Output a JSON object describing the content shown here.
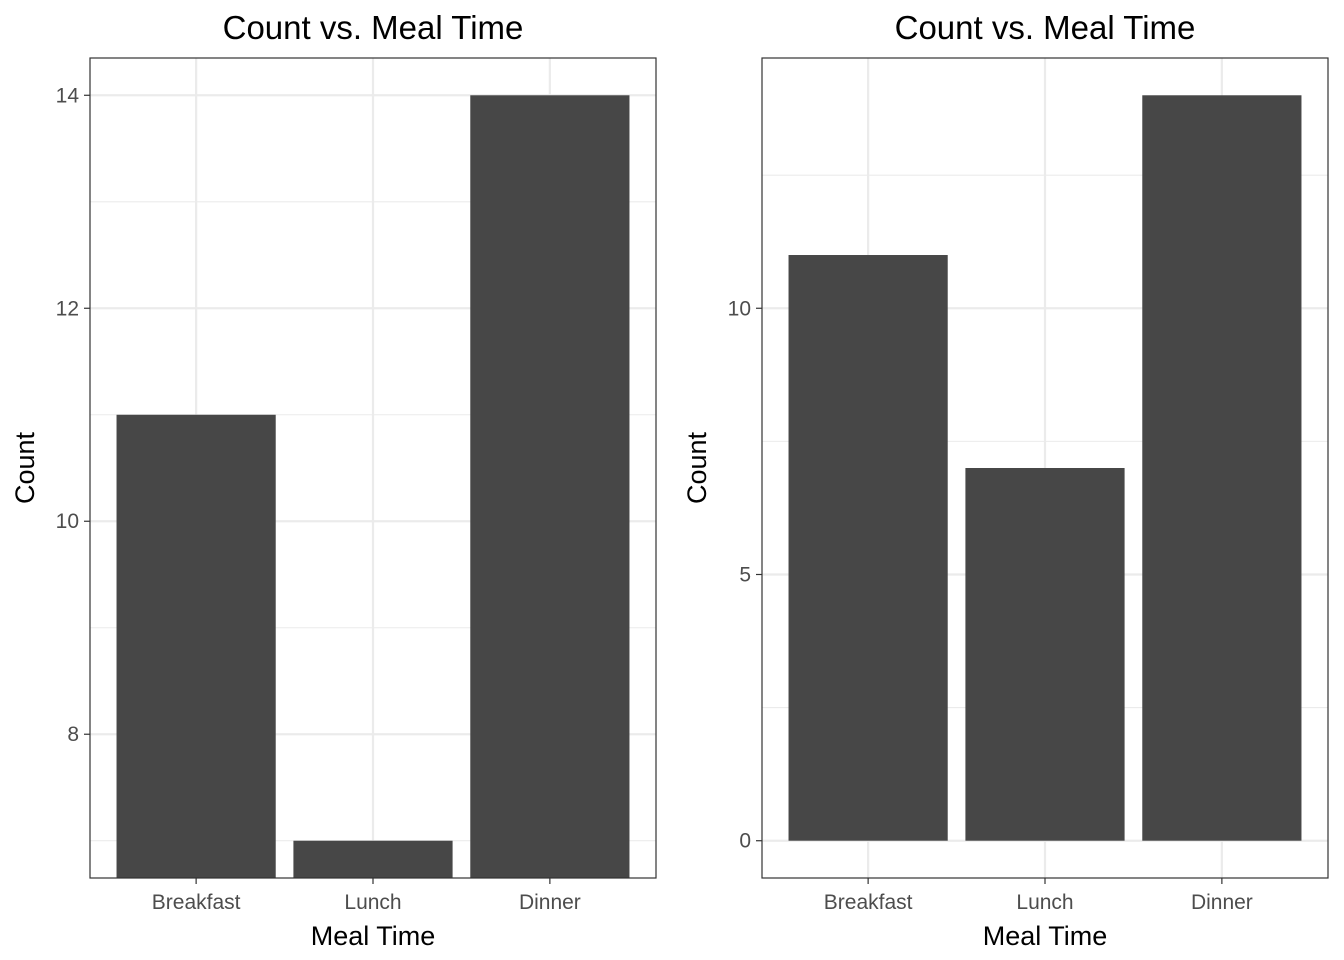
{
  "colors": {
    "bar": "#474747",
    "background": "#ffffff"
  },
  "chart_data": [
    {
      "type": "bar",
      "title": "Count vs. Meal Time",
      "xlabel": "Meal Time",
      "ylabel": "Count",
      "categories": [
        "Breakfast",
        "Lunch",
        "Dinner"
      ],
      "values": [
        11,
        7,
        14
      ],
      "ylim": [
        6.65,
        14.35
      ],
      "yticks": [
        8,
        10,
        12,
        14
      ],
      "yminor": [
        7,
        9,
        11,
        13
      ],
      "grid": true,
      "legend": "none"
    },
    {
      "type": "bar",
      "title": "Count vs. Meal Time",
      "xlabel": "Meal Time",
      "ylabel": "Count",
      "categories": [
        "Breakfast",
        "Lunch",
        "Dinner"
      ],
      "values": [
        11,
        7,
        14
      ],
      "ylim": [
        -0.7,
        14.7
      ],
      "yticks": [
        0,
        5,
        10
      ],
      "yminor": [
        2.5,
        7.5,
        12.5
      ],
      "grid": true,
      "legend": "none"
    }
  ]
}
